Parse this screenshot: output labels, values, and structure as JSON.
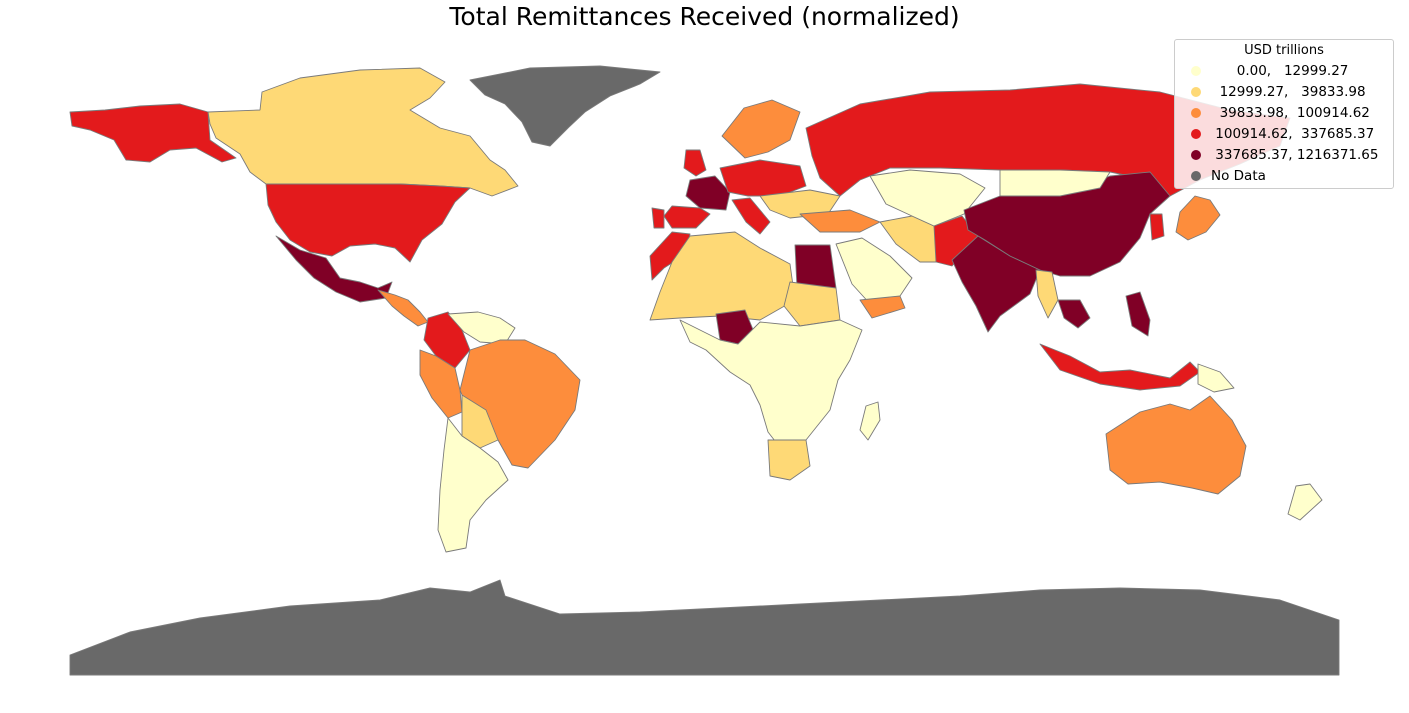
{
  "title": "Total Remittances Received (normalized)",
  "legend": {
    "title": "USD trillions",
    "items": [
      {
        "label": "      0.00,   12999.27",
        "color": "#ffffcc"
      },
      {
        "label": "  12999.27,   39833.98",
        "color": "#fed976"
      },
      {
        "label": "  39833.98,  100914.62",
        "color": "#fd8d3c"
      },
      {
        "label": " 100914.62,  337685.37",
        "color": "#e31a1c"
      },
      {
        "label": " 337685.37, 1216371.65",
        "color": "#800026"
      },
      {
        "label": "No Data",
        "color": "#696969"
      }
    ]
  },
  "chart_data": {
    "type": "choropleth",
    "title": "Total Remittances Received (normalized)",
    "legend_title": "USD trillions",
    "legend_placement": "top-right",
    "bins": [
      {
        "range": [
          0.0,
          12999.27
        ],
        "color": "#ffffcc"
      },
      {
        "range": [
          12999.27,
          39833.98
        ],
        "color": "#fed976"
      },
      {
        "range": [
          39833.98,
          100914.62
        ],
        "color": "#fd8d3c"
      },
      {
        "range": [
          100914.62,
          337685.37
        ],
        "color": "#e31a1c"
      },
      {
        "range": [
          337685.37,
          1216371.65
        ],
        "color": "#800026"
      },
      {
        "label": "No Data",
        "color": "#696969"
      }
    ],
    "regions": [
      {
        "region": "Greenland",
        "bin": 5
      },
      {
        "region": "Antarctica",
        "bin": 5
      },
      {
        "region": "Canada",
        "bin": 1
      },
      {
        "region": "Alaska (USA)",
        "bin": 3
      },
      {
        "region": "United States",
        "bin": 3
      },
      {
        "region": "Mexico",
        "bin": 4
      },
      {
        "region": "Central America",
        "bin": 2
      },
      {
        "region": "Colombia",
        "bin": 3
      },
      {
        "region": "Venezuela",
        "bin": 0
      },
      {
        "region": "Brazil",
        "bin": 2
      },
      {
        "region": "Peru",
        "bin": 2
      },
      {
        "region": "Bolivia",
        "bin": 1
      },
      {
        "region": "Argentina & Chile",
        "bin": 0
      },
      {
        "region": "France",
        "bin": 4
      },
      {
        "region": "Spain",
        "bin": 3
      },
      {
        "region": "Portugal",
        "bin": 3
      },
      {
        "region": "United Kingdom",
        "bin": 3
      },
      {
        "region": "Germany & Central Europe",
        "bin": 3
      },
      {
        "region": "Italy",
        "bin": 3
      },
      {
        "region": "Scandinavia",
        "bin": 2
      },
      {
        "region": "Eastern Europe",
        "bin": 1
      },
      {
        "region": "Russia",
        "bin": 3
      },
      {
        "region": "Turkey",
        "bin": 2
      },
      {
        "region": "Morocco",
        "bin": 3
      },
      {
        "region": "Algeria & Sahel",
        "bin": 1
      },
      {
        "region": "Egypt",
        "bin": 4
      },
      {
        "region": "Nigeria",
        "bin": 4
      },
      {
        "region": "Sudan",
        "bin": 1
      },
      {
        "region": "Central & Southern Africa",
        "bin": 0
      },
      {
        "region": "South Africa",
        "bin": 1
      },
      {
        "region": "Arabian Peninsula",
        "bin": 0
      },
      {
        "region": "Yemen",
        "bin": 2
      },
      {
        "region": "Iran",
        "bin": 1
      },
      {
        "region": "Central Asia",
        "bin": 0
      },
      {
        "region": "Pakistan",
        "bin": 3
      },
      {
        "region": "India",
        "bin": 4
      },
      {
        "region": "China",
        "bin": 4
      },
      {
        "region": "Mongolia",
        "bin": 0
      },
      {
        "region": "Japan",
        "bin": 2
      },
      {
        "region": "Korea",
        "bin": 3
      },
      {
        "region": "Myanmar",
        "bin": 1
      },
      {
        "region": "Vietnam",
        "bin": 4
      },
      {
        "region": "Philippines",
        "bin": 4
      },
      {
        "region": "Indonesia",
        "bin": 3
      },
      {
        "region": "Papua New Guinea",
        "bin": 0
      },
      {
        "region": "Australia",
        "bin": 2
      },
      {
        "region": "New Zealand",
        "bin": 0
      },
      {
        "region": "Madagascar",
        "bin": 0
      }
    ]
  }
}
